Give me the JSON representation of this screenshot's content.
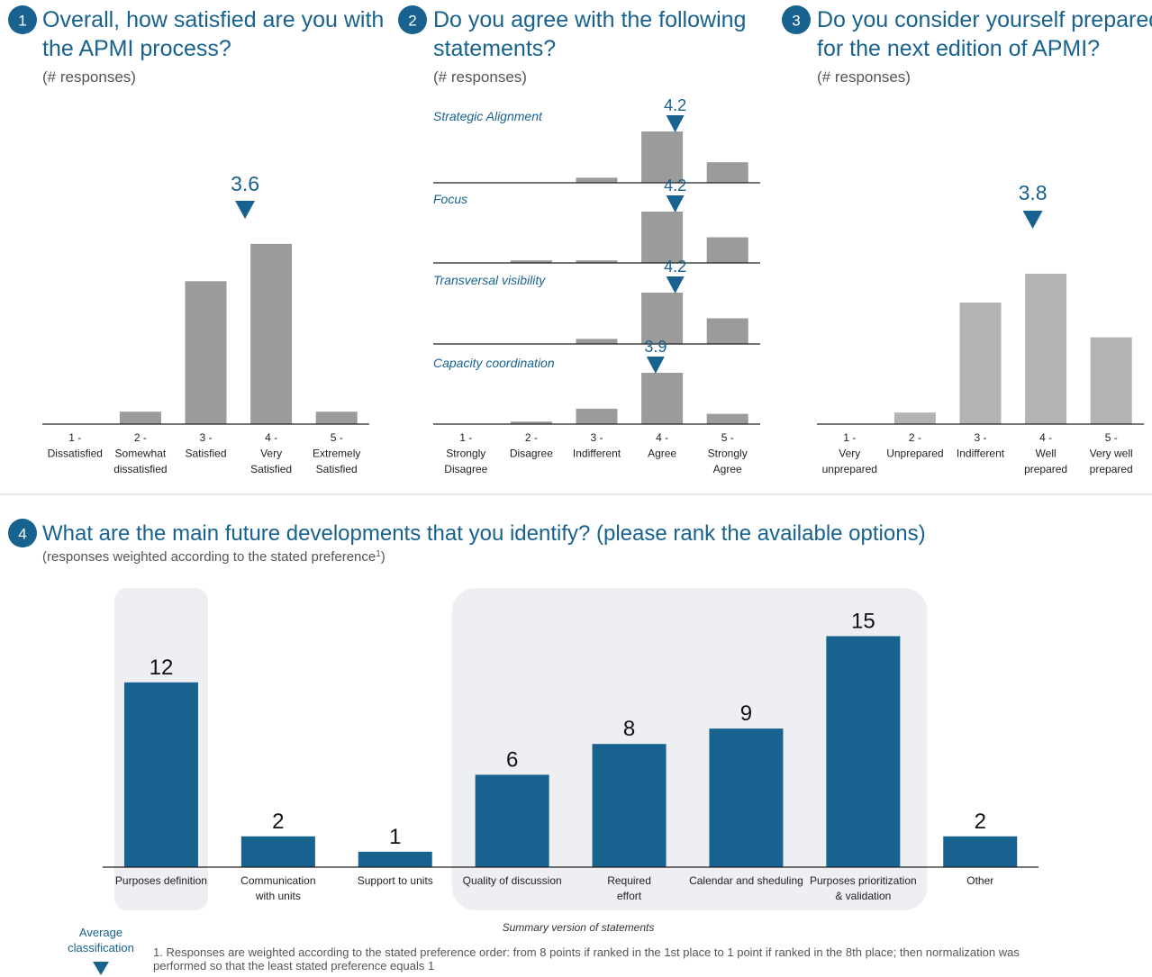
{
  "colors": {
    "accent": "#17628f",
    "bar_gray": "#9b9b9b",
    "bar_light_gray": "#b3b3b3",
    "highlight_box": "#eeeff3",
    "axis": "#222222",
    "text_gray": "#555555"
  },
  "legend_note": {
    "label": "Average classification",
    "icon": "triangle-down-icon"
  },
  "panel1": {
    "number": "1",
    "title_line1": "Overall, how satisfied are you with",
    "title_line2": "the APMI process?",
    "subtitle": "(# responses)",
    "average": "3.6"
  },
  "panel2": {
    "number": "2",
    "title_line1": "Do you agree with the following",
    "title_line2": "statements?",
    "subtitle": "(# responses)"
  },
  "panel3": {
    "number": "3",
    "title_line1": "Do you consider yourself prepared",
    "title_line2": "for the next edition of APMI?",
    "subtitle": "(# responses)",
    "average": "3.8"
  },
  "panel4": {
    "number": "4",
    "title": "What are the main future developments that you identify? (please rank the available options)",
    "subtitle": "(responses weighted according to the stated preference",
    "subtitle_sup": "1",
    "subtitle_end": ")",
    "group_caption": "Summary version of statements",
    "footnote_line1": "1. Responses are weighted according to the stated preference order: from 8 points if ranked in the 1st place to 1 point if ranked in the 8th place; then normalization was",
    "footnote_line2": "performed so that the least stated preference equals 1"
  },
  "chart_data": [
    {
      "type": "bar",
      "title": "Overall, how satisfied are you with the APMI process?",
      "subtitle": "(# responses)",
      "categories": [
        [
          "1 -",
          "Dissatisfied"
        ],
        [
          "2 -",
          "Somewhat",
          "dissatisfied"
        ],
        [
          "3 -",
          "Satisfied"
        ],
        [
          "4 -",
          "Very",
          "Satisfied"
        ],
        [
          "5 -",
          "Extremely",
          "Satisfied"
        ]
      ],
      "values": [
        0,
        1,
        11.5,
        14.5,
        1
      ],
      "ylim": [
        0,
        16
      ],
      "average": 3.6,
      "grid": false
    },
    {
      "type": "bar",
      "title": "Do you agree with the following statements?",
      "subtitle": "(# responses)",
      "categories": [
        [
          "1 -",
          "Strongly",
          "Disagree"
        ],
        [
          "2 -",
          "Disagree"
        ],
        [
          "3 -",
          "Indifferent"
        ],
        [
          "4 -",
          "Agree"
        ],
        [
          "5 -",
          "Strongly",
          "Agree"
        ]
      ],
      "ylim": [
        0,
        10
      ],
      "grid": false,
      "series": [
        {
          "name": "Strategic Alignment",
          "values": [
            0,
            0,
            1,
            10,
            4
          ],
          "average": 4.2
        },
        {
          "name": "Focus",
          "values": [
            0,
            0.5,
            0.5,
            10,
            5
          ],
          "average": 4.2
        },
        {
          "name": "Transversal visibility",
          "values": [
            0,
            0,
            1,
            10,
            5
          ],
          "average": 4.2
        },
        {
          "name": "Capacity coordination",
          "values": [
            0,
            0.5,
            3,
            10,
            2
          ],
          "average": 3.9
        }
      ]
    },
    {
      "type": "bar",
      "title": "Do you consider yourself prepared for the next edition of APMI?",
      "subtitle": "(# responses)",
      "categories": [
        [
          "1 -",
          "Very",
          "unprepared"
        ],
        [
          "2 -",
          "Unprepared"
        ],
        [
          "3 -",
          "Indifferent"
        ],
        [
          "4 -",
          "Well",
          "prepared"
        ],
        [
          "5 -",
          "Very well",
          "prepared"
        ]
      ],
      "values": [
        0,
        1,
        10.5,
        13,
        7.5
      ],
      "ylim": [
        0,
        16
      ],
      "average": 3.8,
      "grid": false
    },
    {
      "type": "bar",
      "title": "What are the main future developments that you identify? (please rank the available options)",
      "subtitle": "(responses weighted according to the stated preference1)",
      "categories": [
        [
          "Purposes definition"
        ],
        [
          "Communication",
          "with units"
        ],
        [
          "Support to units"
        ],
        [
          "Quality of discussion"
        ],
        [
          "Required",
          "effort"
        ],
        [
          "Calendar and sheduling"
        ],
        [
          "Purposes prioritization",
          "& validation"
        ],
        [
          "Other"
        ]
      ],
      "values": [
        12,
        2,
        1,
        6,
        8,
        9,
        15,
        2
      ],
      "ylim": [
        0,
        15
      ],
      "grid": false,
      "annotations": [
        "Summary version of statements"
      ]
    }
  ]
}
